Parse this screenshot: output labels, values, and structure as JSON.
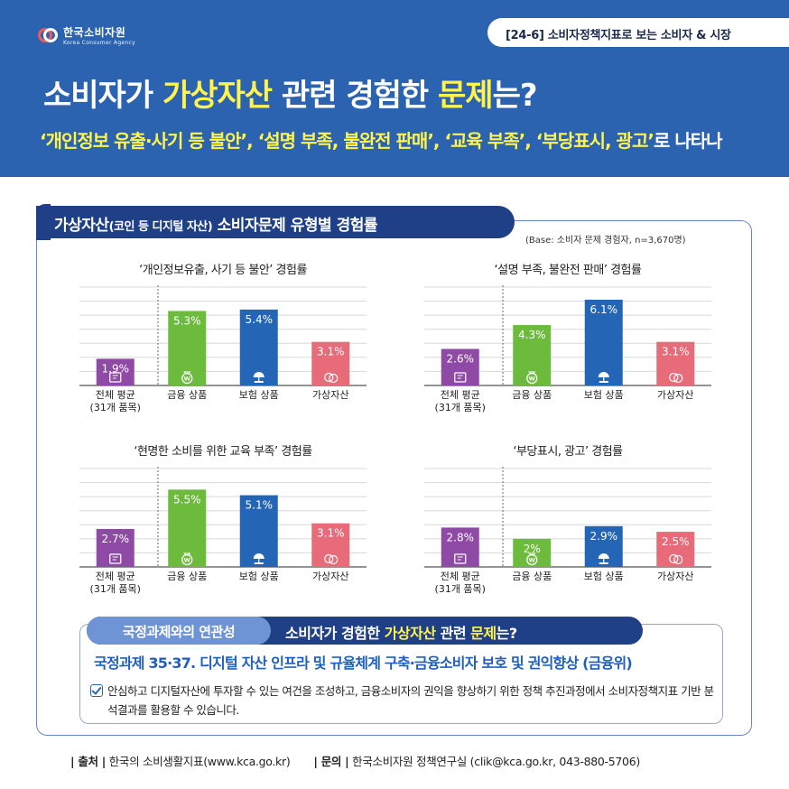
{
  "header": {
    "org_name": "한국소비자원",
    "org_name_en": "Korea Consumer Agency",
    "series_tag": "[24-6] 소비자정책지표로 보는 소비자 & 시장",
    "headline_pre": "소비자가 ",
    "headline_hl1": "가상자산",
    "headline_mid": " 관련 경험한 ",
    "headline_hl2": "문제",
    "headline_post": "는?",
    "subheadline": "‘개인정보 유출·사기 등 불안’, ‘설명 부족, 불완전 판매’, ‘교육 부족’, ‘부당표시, 광고’",
    "subheadline_tail": "로 나타나"
  },
  "card": {
    "title_main": "가상자산",
    "title_paren": "(코인 등 디지털 자산)",
    "title_rest": " 소비자문제 유형별 경험률",
    "base_note": "(Base: 소비자 문제  경험자, n=3,670명)"
  },
  "colors": {
    "header_bg": "#2b63b0",
    "highlight": "#fff34d",
    "navy": "#1f3f86",
    "bar_average": "#8e4aa4",
    "bar_finance": "#6dbb3c",
    "bar_insurance": "#2565b5",
    "bar_virtual": "#e86b7a"
  },
  "chart_data": [
    {
      "type": "bar",
      "title": "‘개인정보유출, 사기 등 불안’ 경험률",
      "categories": [
        "전체 평균",
        "금융 상품",
        "보험 상품",
        "가상자산"
      ],
      "category_sub": [
        "(31개 품목)",
        "",
        "",
        ""
      ],
      "values": [
        1.9,
        5.3,
        5.4,
        3.1
      ],
      "labels": [
        "1.9%",
        "5.3%",
        "5.4%",
        "3.1%"
      ],
      "bar_icons": [
        "document-icon",
        "money-bag-icon",
        "umbrella-icon",
        "coin-icon"
      ],
      "ylim": [
        0,
        7
      ],
      "grid": true
    },
    {
      "type": "bar",
      "title": "‘설명 부족, 불완전 판매’ 경험률",
      "categories": [
        "전체 평균",
        "금융 상품",
        "보험 상품",
        "가상자산"
      ],
      "category_sub": [
        "(31개 품목)",
        "",
        "",
        ""
      ],
      "values": [
        2.6,
        4.3,
        6.1,
        3.1
      ],
      "labels": [
        "2.6%",
        "4.3%",
        "6.1%",
        "3.1%"
      ],
      "bar_icons": [
        "document-icon",
        "money-bag-icon",
        "umbrella-icon",
        "coin-icon"
      ],
      "ylim": [
        0,
        7
      ],
      "grid": true
    },
    {
      "type": "bar",
      "title": "‘현명한 소비를 위한 교육 부족’ 경험률",
      "categories": [
        "전체 평균",
        "금융 상품",
        "보험 상품",
        "가상자산"
      ],
      "category_sub": [
        "(31개 품목)",
        "",
        "",
        ""
      ],
      "values": [
        2.7,
        5.5,
        5.1,
        3.1
      ],
      "labels": [
        "2.7%",
        "5.5%",
        "5.1%",
        "3.1%"
      ],
      "bar_icons": [
        "document-icon",
        "money-bag-icon",
        "umbrella-icon",
        "coin-icon"
      ],
      "ylim": [
        0,
        7
      ],
      "grid": true
    },
    {
      "type": "bar",
      "title": "‘부당표시, 광고’ 경험률",
      "categories": [
        "전체 평균",
        "금융 상품",
        "보험 상품",
        "가상자산"
      ],
      "category_sub": [
        "(31개 품목)",
        "",
        "",
        ""
      ],
      "values": [
        2.8,
        2.0,
        2.9,
        2.5
      ],
      "labels": [
        "2.8%",
        "2%",
        "2.9%",
        "2.5%"
      ],
      "bar_icons": [
        "document-icon",
        "money-bag-icon",
        "umbrella-icon",
        "coin-icon"
      ],
      "ylim": [
        0,
        7
      ],
      "grid": true
    }
  ],
  "policy": {
    "label": "국정과제와의 연관성",
    "question_pre": "소비자가 경험한 ",
    "question_hl1": "가상자산",
    "question_mid": " 관련 ",
    "question_hl2": "문제",
    "question_post": "는?",
    "title": "국정과제 35·37. 디지털 자산 인프라 및 규율체계 구축·금융소비자 보호 및 권익향상 (금융위)",
    "text": "안심하고 디지털자산에 투자할 수 있는 여건을 조성하고, 금융소비자의 권익을 향상하기 위한 정책 추진과정에서 소비자정책지표 기반 분석결과를 활용할 수 있습니다."
  },
  "footer": {
    "source_label": "| 출처 |",
    "source_text": " 한국의 소비생활지표(www.kca.go.kr)",
    "contact_label": "| 문의 |",
    "contact_text": " 한국소비자원 정책연구실 (clik@kca.go.kr, 043-880-5706)"
  }
}
